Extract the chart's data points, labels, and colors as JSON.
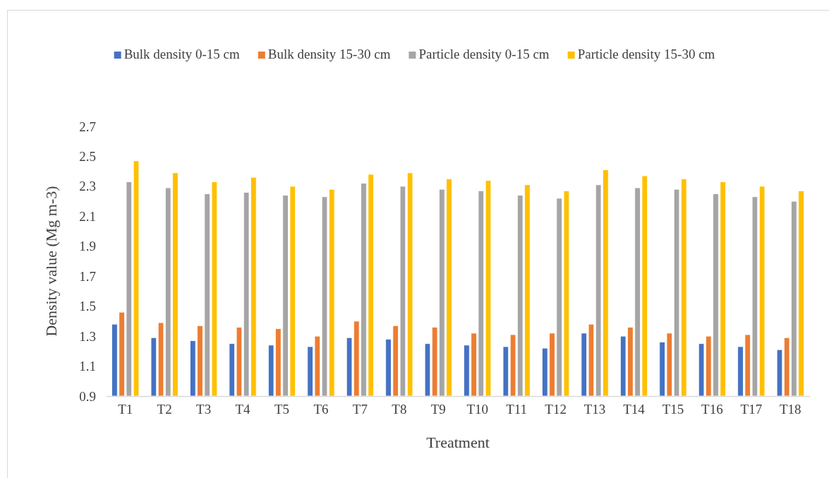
{
  "chart_data": {
    "type": "bar",
    "xlabel": "Treatment",
    "ylabel": "Density value (Mg m-3)",
    "categories": [
      "T1",
      "T2",
      "T3",
      "T4",
      "T5",
      "T6",
      "T7",
      "T8",
      "T9",
      "T10",
      "T11",
      "T12",
      "T13",
      "T14",
      "T15",
      "T16",
      "T17",
      "T18"
    ],
    "series": [
      {
        "name": "Bulk density 0-15 cm",
        "color": "#4472c4",
        "values": [
          1.38,
          1.29,
          1.27,
          1.25,
          1.24,
          1.23,
          1.29,
          1.28,
          1.25,
          1.24,
          1.23,
          1.22,
          1.32,
          1.3,
          1.26,
          1.25,
          1.23,
          1.21
        ]
      },
      {
        "name": "Bulk density 15-30 cm",
        "color": "#ed7d31",
        "values": [
          1.46,
          1.39,
          1.37,
          1.36,
          1.35,
          1.3,
          1.4,
          1.37,
          1.36,
          1.32,
          1.31,
          1.32,
          1.38,
          1.36,
          1.32,
          1.3,
          1.31,
          1.29
        ]
      },
      {
        "name": "Particle density 0-15 cm",
        "color": "#a5a5a5",
        "values": [
          2.33,
          2.29,
          2.25,
          2.26,
          2.24,
          2.23,
          2.32,
          2.3,
          2.28,
          2.27,
          2.24,
          2.22,
          2.31,
          2.29,
          2.28,
          2.25,
          2.23,
          2.2
        ]
      },
      {
        "name": "Particle density 15-30 cm",
        "color": "#ffc000",
        "values": [
          2.47,
          2.39,
          2.33,
          2.36,
          2.3,
          2.28,
          2.38,
          2.39,
          2.35,
          2.34,
          2.31,
          2.27,
          2.41,
          2.37,
          2.35,
          2.33,
          2.3,
          2.27
        ]
      }
    ],
    "ylim": [
      0.9,
      2.7
    ],
    "yticks": [
      0.9,
      1.1,
      1.3,
      1.5,
      1.7,
      1.9,
      2.1,
      2.3,
      2.5,
      2.7
    ],
    "grid": false,
    "legend": "top"
  }
}
